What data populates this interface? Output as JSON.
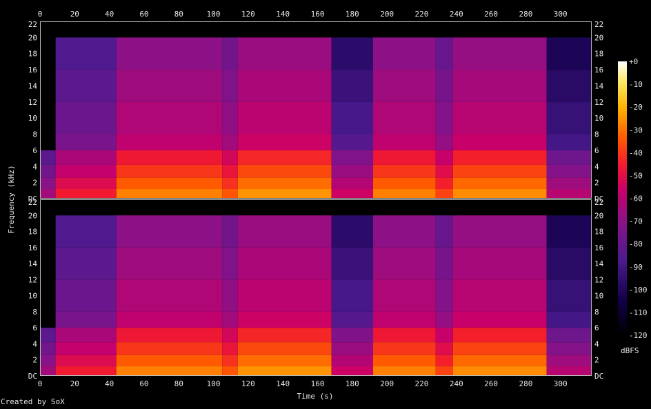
{
  "app": {
    "credit": "Created by SoX"
  },
  "chart_data": {
    "type": "heatmap",
    "title": "",
    "xlabel": "Time (s)",
    "ylabel": "Frequency (kHz)",
    "xlim": [
      0,
      318
    ],
    "ylim": [
      0,
      22
    ],
    "x_ticks": [
      "0",
      "20",
      "40",
      "60",
      "80",
      "100",
      "120",
      "140",
      "160",
      "180",
      "200",
      "220",
      "240",
      "260",
      "280",
      "300"
    ],
    "x_tick_values": [
      0,
      20,
      40,
      60,
      80,
      100,
      120,
      140,
      160,
      180,
      200,
      220,
      240,
      260,
      280,
      300
    ],
    "y_ticks": [
      "DC",
      "2",
      "4",
      "6",
      "8",
      "10",
      "12",
      "14",
      "16",
      "18",
      "20",
      "22"
    ],
    "y_tick_values": [
      0,
      2,
      4,
      6,
      8,
      10,
      12,
      14,
      16,
      18,
      20,
      22
    ],
    "channels": [
      "left",
      "right"
    ],
    "colorbar": {
      "label": "dBFS",
      "range": [
        -120,
        0
      ],
      "ticks": [
        "+0",
        "-10",
        "-20",
        "-30",
        "-40",
        "-50",
        "-60",
        "-70",
        "-80",
        "-90",
        "-100",
        "-110",
        "-120"
      ],
      "tick_values": [
        0,
        -10,
        -20,
        -30,
        -40,
        -50,
        -60,
        -70,
        -80,
        -90,
        -100,
        -110,
        -120
      ]
    },
    "segments": [
      {
        "start": 0,
        "end": 9,
        "level": -95,
        "cutoff_khz": 6
      },
      {
        "start": 9,
        "end": 44,
        "level": -75,
        "cutoff_khz": 20
      },
      {
        "start": 44,
        "end": 105,
        "level": -58,
        "cutoff_khz": 20
      },
      {
        "start": 105,
        "end": 114,
        "level": -65,
        "cutoff_khz": 20
      },
      {
        "start": 114,
        "end": 168,
        "level": -55,
        "cutoff_khz": 20
      },
      {
        "start": 168,
        "end": 192,
        "level": -85,
        "cutoff_khz": 20
      },
      {
        "start": 192,
        "end": 228,
        "level": -58,
        "cutoff_khz": 20
      },
      {
        "start": 228,
        "end": 238,
        "level": -68,
        "cutoff_khz": 20
      },
      {
        "start": 238,
        "end": 292,
        "level": -56,
        "cutoff_khz": 20
      },
      {
        "start": 292,
        "end": 318,
        "level": -90,
        "cutoff_khz": 20
      }
    ]
  }
}
